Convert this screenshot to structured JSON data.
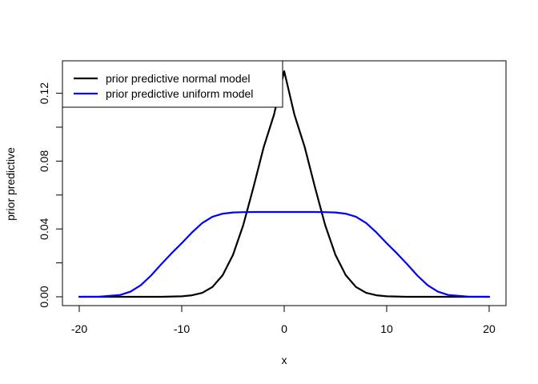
{
  "chart_data": {
    "type": "line",
    "title": "",
    "xlabel": "x",
    "ylabel": "prior predictive",
    "xlim": [
      -20,
      20
    ],
    "ylim": [
      0,
      0.133
    ],
    "x_ticks": [
      -20,
      -10,
      0,
      10,
      20
    ],
    "x_tick_labels": [
      "-20",
      "-10",
      "0",
      "10",
      "20"
    ],
    "y_ticks": [
      0.0,
      0.04,
      0.08,
      0.12
    ],
    "y_tick_labels": [
      "0.00",
      "0.04",
      "0.08",
      "0.12"
    ],
    "grid": false,
    "legend_position": "top-left",
    "series": [
      {
        "name": "prior predictive normal model",
        "color": "#000000",
        "x": [
          -20,
          -18,
          -16,
          -14,
          -12,
          -10,
          -9,
          -8,
          -7,
          -6,
          -5,
          -4,
          -3,
          -2,
          -1,
          0,
          1,
          2,
          3,
          4,
          5,
          6,
          7,
          8,
          9,
          10,
          12,
          14,
          16,
          18,
          20
        ],
        "y": [
          0.0,
          0.0,
          0.0,
          0.0,
          0.0,
          0.0003,
          0.0009,
          0.0023,
          0.0058,
          0.0128,
          0.0247,
          0.0422,
          0.0646,
          0.0883,
          0.1073,
          0.133,
          0.1073,
          0.0883,
          0.0646,
          0.0422,
          0.0247,
          0.0128,
          0.0058,
          0.0023,
          0.0009,
          0.0003,
          0.0,
          0.0,
          0.0,
          0.0,
          0.0
        ]
      },
      {
        "name": "prior predictive uniform model",
        "color": "#0000ff",
        "x": [
          -20,
          -18,
          -16,
          -15,
          -14,
          -13,
          -12,
          -11,
          -10,
          -9,
          -8,
          -7,
          -6,
          -5,
          -4,
          -3,
          -2,
          -1,
          0,
          1,
          2,
          3,
          4,
          5,
          6,
          7,
          8,
          9,
          10,
          11,
          12,
          13,
          14,
          15,
          16,
          18,
          20
        ],
        "y": [
          0.0,
          0.0001,
          0.0011,
          0.003,
          0.0068,
          0.0125,
          0.0192,
          0.0256,
          0.0316,
          0.0379,
          0.0435,
          0.0472,
          0.049,
          0.0497,
          0.0499,
          0.05,
          0.05,
          0.05,
          0.05,
          0.05,
          0.05,
          0.05,
          0.0499,
          0.0497,
          0.049,
          0.0472,
          0.0435,
          0.0379,
          0.0316,
          0.0256,
          0.0192,
          0.0125,
          0.0068,
          0.003,
          0.0011,
          0.0001,
          0.0
        ]
      }
    ]
  }
}
